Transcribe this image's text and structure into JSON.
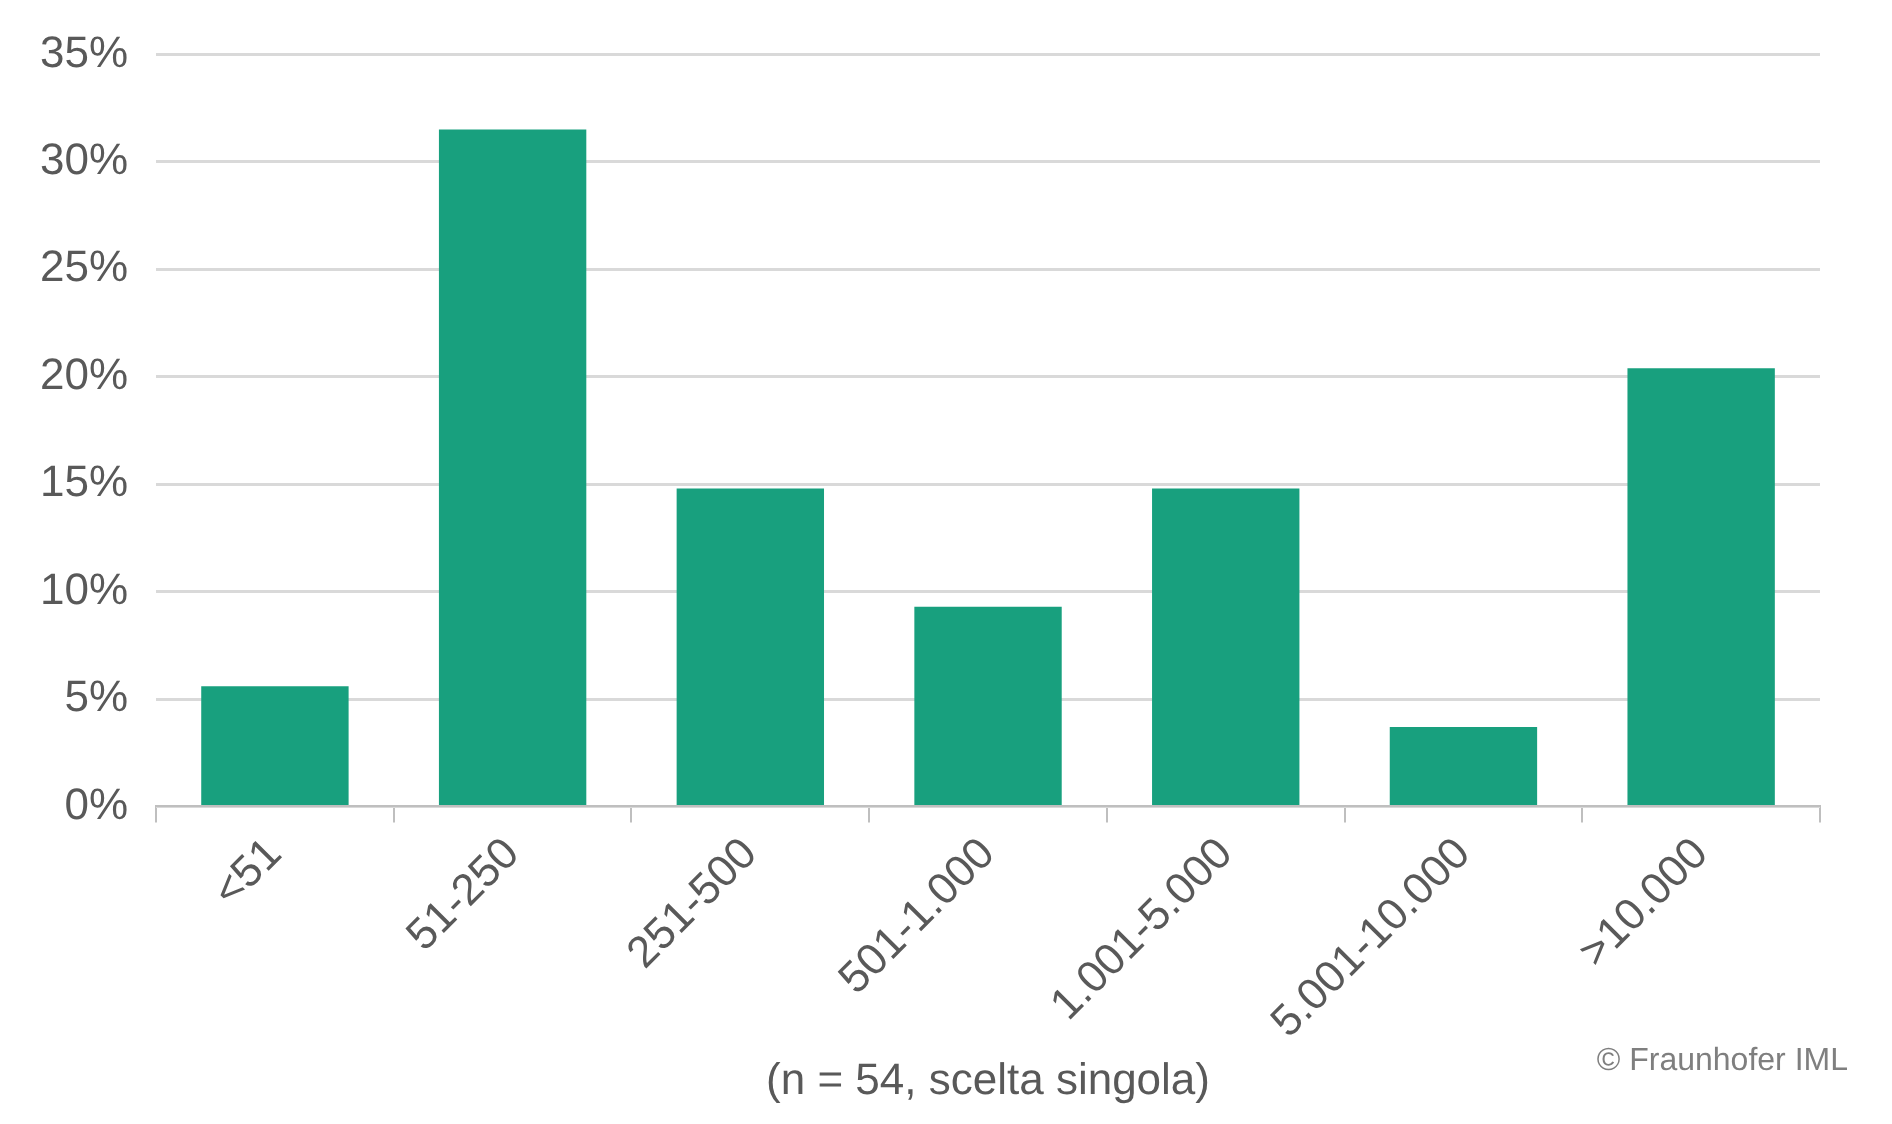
{
  "chart_data": {
    "type": "bar",
    "categories": [
      "<51",
      "51-250",
      "251-500",
      "501-1.000",
      "1.001-5.000",
      "5.001-10.000",
      ">10.000"
    ],
    "values": [
      5.6,
      31.5,
      14.8,
      9.3,
      14.8,
      3.7,
      20.4
    ],
    "color": "#18a07e",
    "ylim": [
      0,
      35
    ],
    "yticks": [
      {
        "value": 0,
        "label": "0%"
      },
      {
        "value": 5,
        "label": "5%"
      },
      {
        "value": 10,
        "label": "10%"
      },
      {
        "value": 15,
        "label": "15%"
      },
      {
        "value": 20,
        "label": "20%"
      },
      {
        "value": 25,
        "label": "25%"
      },
      {
        "value": 30,
        "label": "30%"
      },
      {
        "value": 35,
        "label": "35%"
      }
    ],
    "xlabel": "(n = 54, scelta singola)",
    "annotations": [
      "© Fraunhofer IML"
    ],
    "grid": "y",
    "legend": false
  }
}
